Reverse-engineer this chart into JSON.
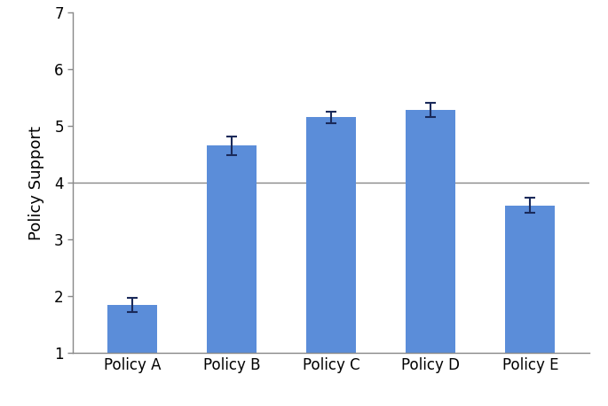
{
  "categories": [
    "Policy A",
    "Policy B",
    "Policy C",
    "Policy D",
    "Policy E"
  ],
  "values": [
    1.85,
    4.65,
    5.15,
    5.28,
    3.6
  ],
  "errors": [
    0.13,
    0.17,
    0.1,
    0.13,
    0.13
  ],
  "bar_color": "#5b8dd9",
  "error_color": "#1a2a5a",
  "ylabel": "Policy Support",
  "ylim": [
    1,
    7
  ],
  "yticks": [
    1,
    2,
    3,
    4,
    5,
    6,
    7
  ],
  "hline_y": 4.0,
  "hline_color": "#888888",
  "bar_width": 0.5,
  "background_color": "#ffffff",
  "capsize": 4,
  "error_linewidth": 1.5
}
